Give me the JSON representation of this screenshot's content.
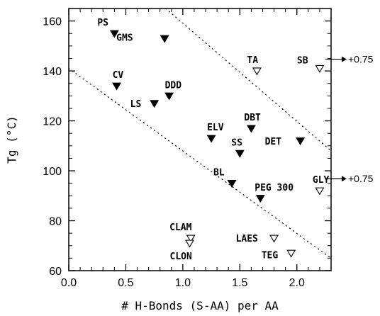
{
  "chart_data": {
    "type": "scatter",
    "xlabel": "# H-Bonds (S-AA) per AA",
    "ylabel": "Tg (°C)",
    "xlim": [
      0.0,
      2.3
    ],
    "ylim": [
      60,
      165
    ],
    "x_ticks": [
      "0.0",
      "0.5",
      "1.0",
      "1.5",
      "2.0"
    ],
    "y_ticks": [
      "60",
      "80",
      "100",
      "120",
      "140",
      "160"
    ],
    "grid": false,
    "points": [
      {
        "label": "PS",
        "x": 0.4,
        "y": 155,
        "filled": true
      },
      {
        "label": "GMS",
        "x": 0.84,
        "y": 153,
        "filled": true
      },
      {
        "label": "CV",
        "x": 0.42,
        "y": 134,
        "filled": true
      },
      {
        "label": "DDD",
        "x": 0.88,
        "y": 130,
        "filled": true
      },
      {
        "label": "LS",
        "x": 0.75,
        "y": 127,
        "filled": true
      },
      {
        "label": "TA",
        "x": 1.65,
        "y": 140,
        "filled": false
      },
      {
        "label": "SB",
        "x": 2.2,
        "y": 141,
        "filled": false
      },
      {
        "label": "ELV",
        "x": 1.25,
        "y": 113,
        "filled": true
      },
      {
        "label": "DBT",
        "x": 1.6,
        "y": 117,
        "filled": true
      },
      {
        "label": "SS",
        "x": 1.5,
        "y": 107,
        "filled": true
      },
      {
        "label": "DET",
        "x": 2.03,
        "y": 112,
        "filled": true
      },
      {
        "label": "BL",
        "x": 1.43,
        "y": 95,
        "filled": true
      },
      {
        "label": "PEG 300",
        "x": 1.68,
        "y": 89,
        "filled": true
      },
      {
        "label": "GLY",
        "x": 2.2,
        "y": 92,
        "filled": false
      },
      {
        "label": "CLAM",
        "x": 1.07,
        "y": 73,
        "filled": false
      },
      {
        "label": "CLON",
        "x": 1.06,
        "y": 71,
        "filled": false
      },
      {
        "label": "LAES",
        "x": 1.8,
        "y": 73,
        "filled": false
      },
      {
        "label": "TEG",
        "x": 1.95,
        "y": 67,
        "filled": false
      }
    ],
    "annotations": [
      {
        "text": "+0.75",
        "target": "SB"
      },
      {
        "text": "+0.75",
        "target": "GLY"
      }
    ],
    "reference_lines": [
      {
        "style": "dotted",
        "from": [
          0.0,
          141
        ],
        "to": [
          2.3,
          65
        ]
      },
      {
        "style": "dotted",
        "from": [
          0.85,
          165
        ],
        "to": [
          2.3,
          108
        ]
      }
    ]
  }
}
